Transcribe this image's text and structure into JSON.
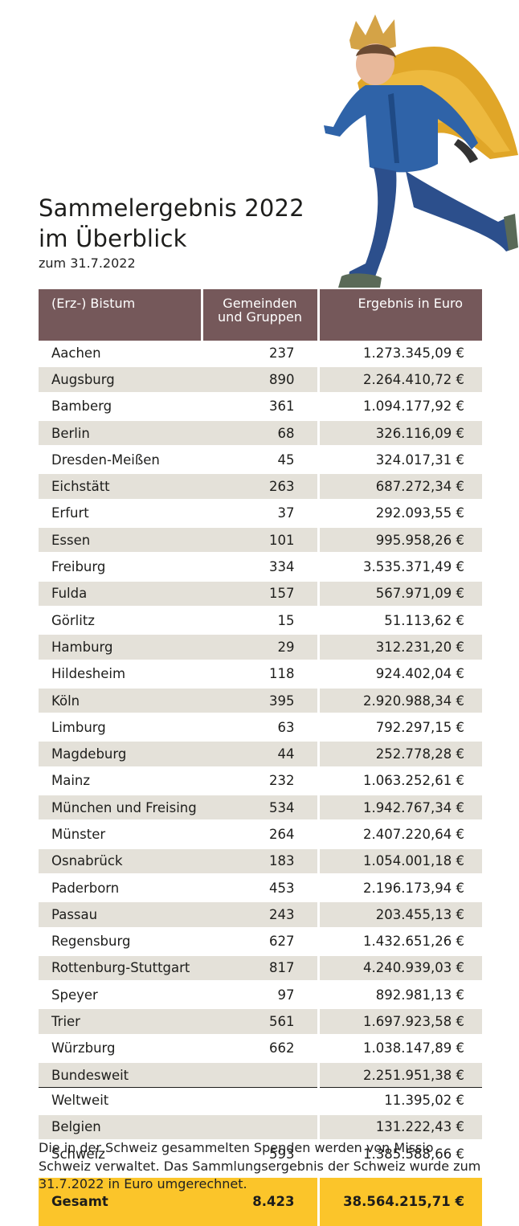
{
  "header": {
    "title_line1": "Sammelergebnis 2022",
    "title_line2": "im Überblick",
    "date": "zum 31.7.2022"
  },
  "table": {
    "headers": [
      "(Erz-) Bistum",
      "Gemeinden",
      "und Gruppen",
      "Ergebnis in Euro"
    ],
    "rows": [
      {
        "name": "Aachen",
        "count": "237",
        "amount": "1.273.345,09 €"
      },
      {
        "name": "Augsburg",
        "count": "890",
        "amount": "2.264.410,72 €"
      },
      {
        "name": "Bamberg",
        "count": "361",
        "amount": "1.094.177,92 €"
      },
      {
        "name": "Berlin",
        "count": "68",
        "amount": "326.116,09 €"
      },
      {
        "name": "Dresden-Meißen",
        "count": "45",
        "amount": "324.017,31 €"
      },
      {
        "name": "Eichstätt",
        "count": "263",
        "amount": "687.272,34 €"
      },
      {
        "name": "Erfurt",
        "count": "37",
        "amount": "292.093,55 €"
      },
      {
        "name": "Essen",
        "count": "101",
        "amount": "995.958,26 €"
      },
      {
        "name": "Freiburg",
        "count": "334",
        "amount": "3.535.371,49 €"
      },
      {
        "name": "Fulda",
        "count": "157",
        "amount": "567.971,09 €"
      },
      {
        "name": "Görlitz",
        "count": "15",
        "amount": "51.113,62 €"
      },
      {
        "name": "Hamburg",
        "count": "29",
        "amount": "312.231,20 €"
      },
      {
        "name": "Hildesheim",
        "count": "118",
        "amount": "924.402,04 €"
      },
      {
        "name": "Köln",
        "count": "395",
        "amount": "2.920.988,34 €"
      },
      {
        "name": "Limburg",
        "count": "63",
        "amount": "792.297,15 €"
      },
      {
        "name": "Magdeburg",
        "count": "44",
        "amount": "252.778,28 €"
      },
      {
        "name": "Mainz",
        "count": "232",
        "amount": "1.063.252,61 €"
      },
      {
        "name": "München und Freising",
        "count": "534",
        "amount": "1.942.767,34 €"
      },
      {
        "name": "Münster",
        "count": "264",
        "amount": "2.407.220,64 €"
      },
      {
        "name": "Osnabrück",
        "count": "183",
        "amount": "1.054.001,18 €"
      },
      {
        "name": "Paderborn",
        "count": "453",
        "amount": "2.196.173,94 €"
      },
      {
        "name": "Passau",
        "count": "243",
        "amount": "203.455,13 €"
      },
      {
        "name": "Regensburg",
        "count": "627",
        "amount": "1.432.651,26 €"
      },
      {
        "name": "Rottenburg-Stuttgart",
        "count": "817",
        "amount": "4.240.939,03 €"
      },
      {
        "name": "Speyer",
        "count": "97",
        "amount": "892.981,13 €"
      },
      {
        "name": "Trier",
        "count": "561",
        "amount": "1.697.923,58 €"
      },
      {
        "name": "Würzburg",
        "count": "662",
        "amount": "1.038.147,89 €"
      },
      {
        "name": "Bundesweit",
        "count": "",
        "amount": "2.251.951,38 €"
      },
      {
        "name": "Weltweit",
        "count": "",
        "amount": "11.395,02 €"
      },
      {
        "name": "Belgien",
        "count": "",
        "amount": "131.222,43 €"
      },
      {
        "name": "Schweiz",
        "count": "593",
        "amount": "1.385.588,66 €"
      }
    ],
    "total": {
      "name": "Gesamt",
      "count": "8.423",
      "amount": "38.564.215,71 €"
    }
  },
  "footnote": "Die in der Schweiz gesammelten Spenden werden von Missio Schweiz verwaltet. Das Sammlungsergebnis der Schweiz wurde zum 31.7.2022 in Euro umgerechnet.",
  "colors": {
    "header_bg": "#75585a",
    "row_shade": "#e4e1d9",
    "total_bg": "#fbc52a"
  },
  "image": {
    "subject": "running child wearing a paper crown and golden cape",
    "icon": "child-runner-illustration"
  }
}
